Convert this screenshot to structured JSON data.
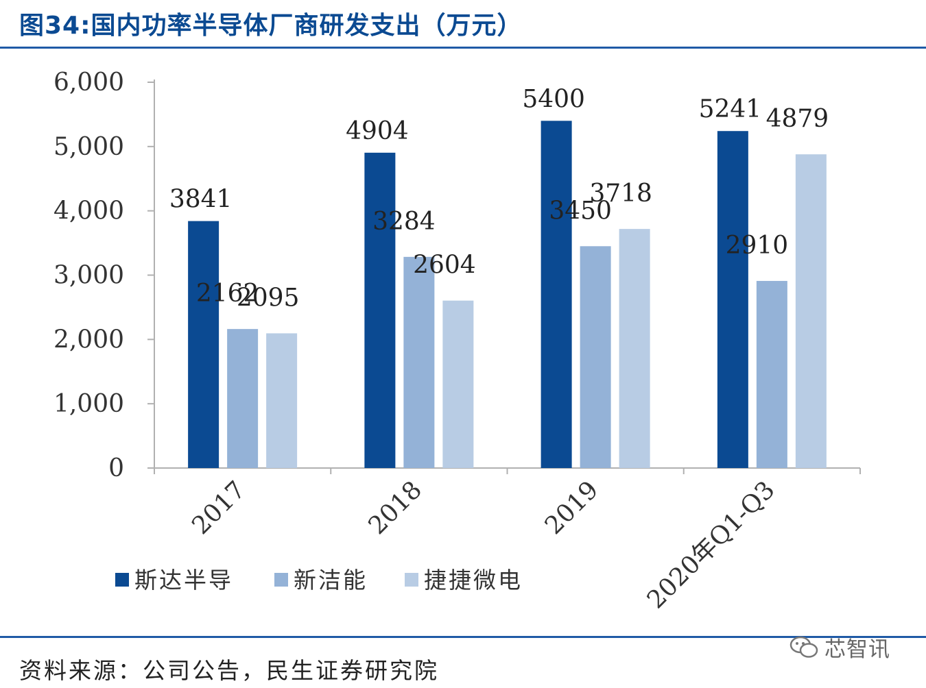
{
  "title": "图34:国内功率半导体厂商研发支出（万元）",
  "source": "资料来源：公司公告，民生证券研究院",
  "watermark": {
    "text": "芯智讯",
    "icon": "wechat-icon"
  },
  "chart_data": {
    "type": "bar",
    "categories": [
      "2017",
      "2018",
      "2019",
      "2020年Q1-Q3"
    ],
    "series": [
      {
        "name": "斯达半导",
        "values": [
          3841,
          4904,
          5400,
          5241
        ],
        "color": "#0b4a92"
      },
      {
        "name": "新洁能",
        "values": [
          2162,
          3284,
          3450,
          2910
        ],
        "color": "#94b2d7"
      },
      {
        "name": "捷捷微电",
        "values": [
          2095,
          2604,
          3718,
          4879
        ],
        "color": "#b8cce4"
      }
    ],
    "yticks": [
      "0",
      "1,000",
      "2,000",
      "3,000",
      "4,000",
      "5,000",
      "6,000"
    ],
    "ylim": [
      0,
      6000
    ],
    "legend_position": "bottom-left",
    "grid": false
  }
}
